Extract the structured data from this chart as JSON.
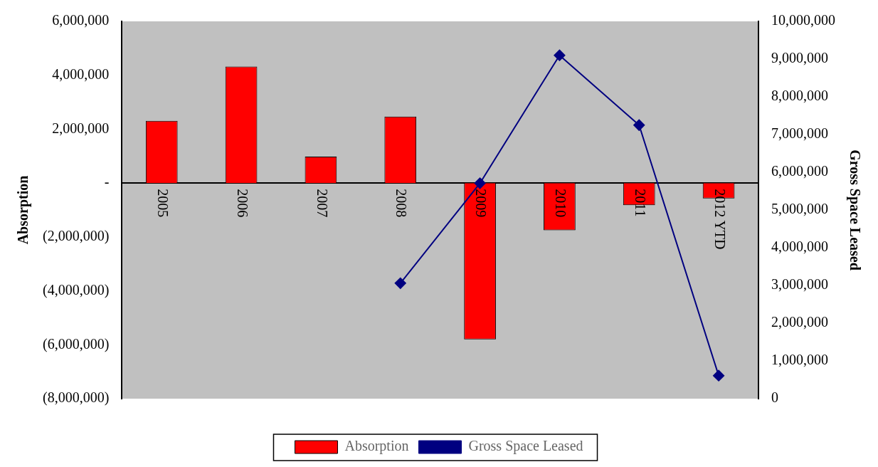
{
  "chart_data": {
    "type": "bar",
    "categories": [
      "2005",
      "2006",
      "2007",
      "2008",
      "2009",
      "2010",
      "2011",
      "2012 YTD"
    ],
    "series": [
      {
        "name": "Absorption",
        "color": "#ff0000",
        "values": [
          2310000,
          4320000,
          980000,
          2470000,
          -5800000,
          -1750000,
          -820000,
          -570000
        ]
      },
      {
        "name": "Gross Space Leased",
        "type": "line",
        "axis": "y2",
        "color": "#000080",
        "marker": "diamond",
        "values": [
          null,
          null,
          null,
          3060000,
          5710000,
          9100000,
          7250000,
          610000
        ]
      }
    ],
    "ylabel": "Absorption",
    "y2label": "Gross Space Leased",
    "ylim": [
      -8000000,
      6000000
    ],
    "yticks": [
      {
        "value": -8000000,
        "label": "(8,000,000)"
      },
      {
        "value": -6000000,
        "label": "(6,000,000)"
      },
      {
        "value": -4000000,
        "label": "(4,000,000)"
      },
      {
        "value": -2000000,
        "label": "(2,000,000)"
      },
      {
        "value": 0,
        "label": "-"
      },
      {
        "value": 2000000,
        "label": "2,000,000"
      },
      {
        "value": 4000000,
        "label": "4,000,000"
      },
      {
        "value": 6000000,
        "label": "6,000,000"
      }
    ],
    "y2lim": [
      0,
      10000000
    ],
    "y2ticks": [
      0,
      {
        "value": 1000000,
        "label": "1,000,000"
      },
      {
        "value": 2000000,
        "label": "2,000,000"
      },
      {
        "value": 3000000,
        "label": "3,000,000"
      },
      {
        "value": 4000000,
        "label": "4,000,000"
      },
      {
        "value": 5000000,
        "label": "5,000,000"
      },
      {
        "value": 6000000,
        "label": "6,000,000"
      },
      {
        "value": 7000000,
        "label": "7,000,000"
      },
      {
        "value": 8000000,
        "label": "8,000,000"
      },
      {
        "value": 9000000,
        "label": "9,000,000"
      },
      {
        "value": 10000000,
        "label": "10,000,000"
      }
    ],
    "grid": false,
    "legend": "bottom"
  }
}
